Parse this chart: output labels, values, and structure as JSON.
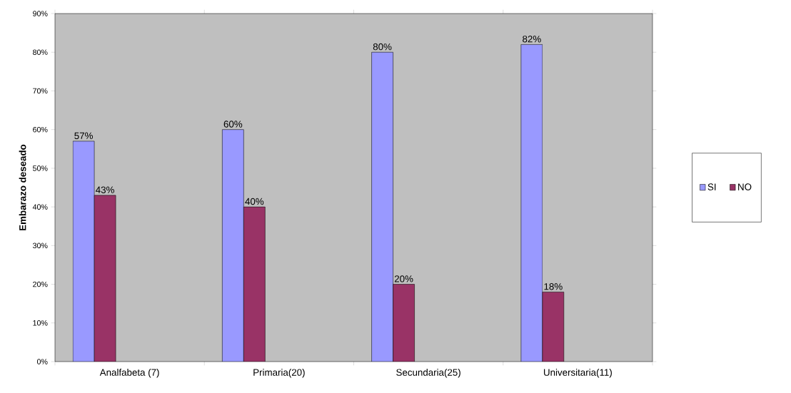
{
  "chart_data": {
    "type": "bar",
    "ylabel": "Embarazo deseado",
    "categories": [
      "Analfabeta (7)",
      "Primaria(20)",
      "Secundaria(25)",
      "Universitaria(11)"
    ],
    "series": [
      {
        "name": "SI",
        "color": "#9999ff",
        "values": [
          57,
          60,
          80,
          82
        ],
        "value_labels": [
          "57%",
          "60%",
          "80%",
          "82%"
        ]
      },
      {
        "name": "NO",
        "color": "#993366",
        "values": [
          43,
          40,
          20,
          18
        ],
        "value_labels": [
          "43%",
          "40%",
          "20%",
          "18%"
        ]
      }
    ],
    "ylim": [
      0,
      90
    ],
    "yticks": [
      {
        "value": 0,
        "label": "0%"
      },
      {
        "value": 10,
        "label": "10%"
      },
      {
        "value": 20,
        "label": "20%"
      },
      {
        "value": 30,
        "label": "30%"
      },
      {
        "value": 40,
        "label": "40%"
      },
      {
        "value": 50,
        "label": "50%"
      },
      {
        "value": 60,
        "label": "60%"
      },
      {
        "value": 70,
        "label": "70%"
      },
      {
        "value": 80,
        "label": "80%"
      },
      {
        "value": 90,
        "label": "90%"
      }
    ],
    "grid": false,
    "legend": "right"
  }
}
